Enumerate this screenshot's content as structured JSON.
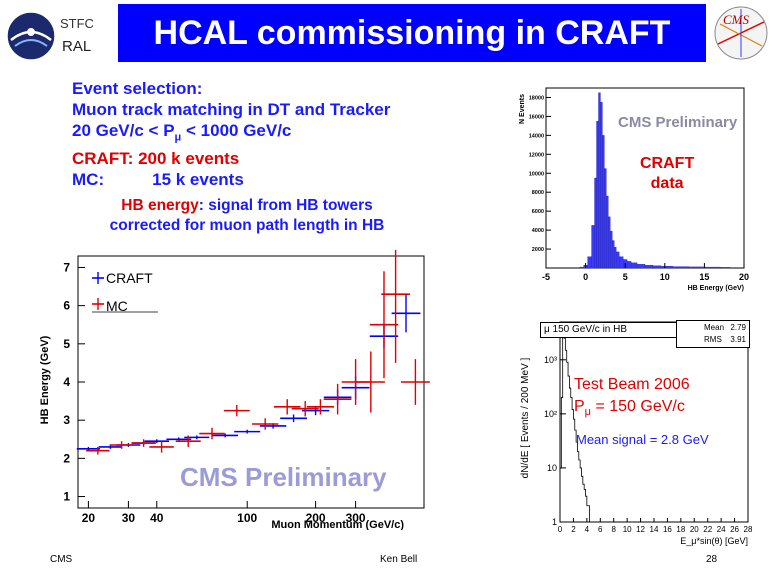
{
  "header": {
    "org_top": "STFC",
    "org_bottom": "RAL",
    "title": "HCAL commissioning in CRAFT"
  },
  "selection": {
    "line1": "Event selection:",
    "line2": "Muon track matching in DT and Tracker",
    "line3_pre": "20 GeV/c < P",
    "line3_sub": "μ",
    "line3_post": " < 1000 GeV/c",
    "line4": "CRAFT:  200 k events",
    "line5_label": "MC:",
    "line5_value": "15 k events"
  },
  "hb_note": {
    "highlight": "HB energy",
    "rest_line1": ": signal from HB towers",
    "line2": "corrected for muon path length in HB"
  },
  "top_hist": {
    "preliminary": "CMS Preliminary",
    "label_line1": "CRAFT",
    "label_line2": "data",
    "ylabel": "N Events",
    "xlabel": "HB Energy (GeV)"
  },
  "tb": {
    "stats_title": "μ 150 GeV/c in HB",
    "mean_label": "Mean",
    "mean_value": "2.79",
    "rms_label": "RMS",
    "rms_value": "3.91",
    "line1": "Test Beam 2006",
    "line2_pre": "P",
    "line2_sub": "μ",
    "line2_post": " = 150 GeV/c",
    "mean_signal": "Mean signal = 2.8 GeV",
    "ylabel": "dN/dE [ Events / 200 MeV ]",
    "xlabel": "E_μ*sin(θ) [GeV]"
  },
  "main_plot": {
    "preliminary": "CMS Preliminary",
    "legend_craft": "CRAFT",
    "legend_mc": "MC"
  },
  "footer": {
    "left": "CMS",
    "center": "Ken Bell",
    "page": "28"
  },
  "chart_data": [
    {
      "type": "bar",
      "title": "",
      "xlabel": "HB Energy (GeV)",
      "ylabel": "N Events",
      "xlim": [
        -5,
        20
      ],
      "ylim": [
        0,
        19000
      ],
      "x_ticks": [
        "-5",
        "0",
        "5",
        "10",
        "15",
        "20"
      ],
      "y_ticks": [
        "2000",
        "4000",
        "6000",
        "8000",
        "10000",
        "12000",
        "14000",
        "16000",
        "18000"
      ],
      "bin_centers": [
        -0.5,
        0,
        0.5,
        1,
        1.25,
        1.5,
        1.75,
        2,
        2.25,
        2.5,
        2.75,
        3,
        3.25,
        3.5,
        3.75,
        4,
        4.5,
        5,
        5.5,
        6,
        7,
        8,
        9,
        10,
        12,
        14,
        16,
        18
      ],
      "values": [
        100,
        300,
        1200,
        4500,
        9500,
        15500,
        18500,
        17500,
        14000,
        10500,
        7600,
        5400,
        3900,
        2900,
        2200,
        1700,
        1200,
        900,
        700,
        550,
        400,
        300,
        250,
        200,
        150,
        120,
        100,
        80
      ],
      "color": "#3a3aff"
    },
    {
      "type": "scatter",
      "title": "",
      "xlabel": "Muon Momentum (GeV/c)",
      "ylabel": "HB Energy (GeV)",
      "x_scale": "log",
      "xlim": [
        18,
        600
      ],
      "ylim": [
        0.7,
        7.3
      ],
      "x_ticks": [
        "20",
        "30",
        "40",
        "100",
        "200",
        "300"
      ],
      "y_ticks": [
        "1",
        "2",
        "3",
        "4",
        "5",
        "6",
        "7"
      ],
      "series": [
        {
          "name": "CRAFT",
          "color": "#0000ff",
          "points": [
            [
              20,
              2.25,
              0.05
            ],
            [
              25,
              2.3,
              0.05
            ],
            [
              30,
              2.35,
              0.05
            ],
            [
              35,
              2.4,
              0.05
            ],
            [
              40,
              2.45,
              0.05
            ],
            [
              50,
              2.5,
              0.05
            ],
            [
              60,
              2.55,
              0.05
            ],
            [
              80,
              2.6,
              0.05
            ],
            [
              100,
              2.7,
              0.05
            ],
            [
              130,
              2.85,
              0.07
            ],
            [
              160,
              3.05,
              0.1
            ],
            [
              200,
              3.25,
              0.12
            ],
            [
              250,
              3.6,
              0.2
            ],
            [
              300,
              3.85,
              0.3
            ],
            [
              400,
              5.2,
              0.3
            ],
            [
              500,
              5.8,
              0.5
            ]
          ]
        },
        {
          "name": "MC",
          "color": "#e00000",
          "points": [
            [
              22,
              2.2,
              0.1
            ],
            [
              28,
              2.35,
              0.1
            ],
            [
              35,
              2.4,
              0.1
            ],
            [
              42,
              2.3,
              0.15
            ],
            [
              55,
              2.45,
              0.15
            ],
            [
              70,
              2.65,
              0.15
            ],
            [
              90,
              3.25,
              0.15
            ],
            [
              120,
              2.9,
              0.15
            ],
            [
              150,
              3.35,
              0.2
            ],
            [
              180,
              3.3,
              0.2
            ],
            [
              210,
              3.35,
              0.2
            ],
            [
              250,
              3.55,
              0.4
            ],
            [
              300,
              4.0,
              0.6
            ],
            [
              350,
              4.0,
              0.8
            ],
            [
              400,
              5.5,
              1.4
            ],
            [
              450,
              6.3,
              1.8
            ],
            [
              550,
              4.0,
              0.6
            ]
          ]
        }
      ]
    },
    {
      "type": "bar",
      "title": "μ 150 GeV/c in HB",
      "xlabel": "E_μ*sin(θ) [GeV]",
      "ylabel": "dN/dE [ Events / 200 MeV ]",
      "y_scale": "log",
      "xlim": [
        0,
        28
      ],
      "ylim": [
        1,
        5000
      ],
      "x_ticks": [
        "0",
        "2",
        "4",
        "6",
        "8",
        "10",
        "12",
        "14",
        "16",
        "18",
        "20",
        "22",
        "24",
        "26",
        "28"
      ],
      "y_ticks": [
        "1",
        "10",
        "10²",
        "10³"
      ],
      "values_bin_0_2": [
        10,
        200,
        3000,
        2500,
        1500,
        900,
        500,
        300,
        200,
        120,
        80,
        50,
        30,
        20,
        14,
        10,
        7,
        5,
        4,
        3,
        2,
        2,
        1,
        1,
        1,
        1
      ],
      "color": "#000000"
    }
  ]
}
